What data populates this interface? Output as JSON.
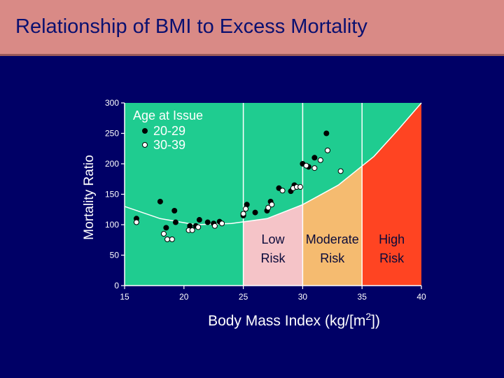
{
  "header": {
    "title": "Relationship of BMI to Excess Mortality"
  },
  "chart_data": {
    "type": "scatter",
    "title": "Relationship of BMI to Excess Mortality",
    "xlabel_prefix": "Body Mass Index (kg/[m",
    "xlabel_sup": "2",
    "xlabel_suffix": "])",
    "ylabel": "Mortality Ratio",
    "xlim": [
      15,
      40
    ],
    "ylim": [
      0,
      300
    ],
    "xticks": [
      15,
      20,
      25,
      30,
      35,
      40
    ],
    "yticks": [
      0,
      50,
      100,
      150,
      200,
      250,
      300
    ],
    "legend": {
      "title": "Age at Issue",
      "placement": "top-left"
    },
    "zones": [
      {
        "line1": "Low",
        "line2": "Risk",
        "x_from": 25,
        "x_to": 30,
        "color": "#f5c4c8"
      },
      {
        "line1": "Moderate",
        "line2": "Risk",
        "x_from": 30,
        "x_to": 35,
        "color": "#f5bb70"
      },
      {
        "line1": "High",
        "line2": "Risk",
        "x_from": 35,
        "x_to": 40,
        "color": "#ff4422"
      }
    ],
    "background_color": "#1fcc90",
    "curve": [
      [
        15,
        130
      ],
      [
        18,
        110
      ],
      [
        21,
        100
      ],
      [
        24,
        102
      ],
      [
        27,
        110
      ],
      [
        30,
        133
      ],
      [
        33,
        165
      ],
      [
        36,
        212
      ],
      [
        38,
        255
      ],
      [
        40,
        300
      ]
    ],
    "series": [
      {
        "name": "20-29",
        "marker": "filled",
        "points": [
          [
            16,
            110
          ],
          [
            18,
            138
          ],
          [
            18.5,
            95
          ],
          [
            19.2,
            123
          ],
          [
            19.3,
            104
          ],
          [
            20.5,
            98
          ],
          [
            21,
            98
          ],
          [
            21.3,
            108
          ],
          [
            22,
            104
          ],
          [
            22.5,
            102
          ],
          [
            23,
            105
          ],
          [
            25,
            115
          ],
          [
            25.3,
            133
          ],
          [
            26,
            120
          ],
          [
            27,
            123
          ],
          [
            27.3,
            138
          ],
          [
            28,
            160
          ],
          [
            29,
            155
          ],
          [
            29.3,
            165
          ],
          [
            30,
            200
          ],
          [
            30.5,
            195
          ],
          [
            31,
            210
          ],
          [
            32,
            250
          ]
        ]
      },
      {
        "name": "30-39",
        "marker": "open",
        "points": [
          [
            16,
            104
          ],
          [
            18.3,
            85
          ],
          [
            18.6,
            76
          ],
          [
            19,
            76
          ],
          [
            20.4,
            91
          ],
          [
            20.7,
            91
          ],
          [
            21.2,
            96
          ],
          [
            22.6,
            98
          ],
          [
            23.2,
            102
          ],
          [
            25,
            118
          ],
          [
            25.2,
            126
          ],
          [
            27.1,
            128
          ],
          [
            27.4,
            133
          ],
          [
            28.3,
            156
          ],
          [
            29.2,
            160
          ],
          [
            29.5,
            162
          ],
          [
            29.8,
            162
          ],
          [
            30.3,
            197
          ],
          [
            31,
            193
          ],
          [
            31.5,
            206
          ],
          [
            32.1,
            222
          ],
          [
            33.2,
            188
          ]
        ]
      }
    ]
  }
}
